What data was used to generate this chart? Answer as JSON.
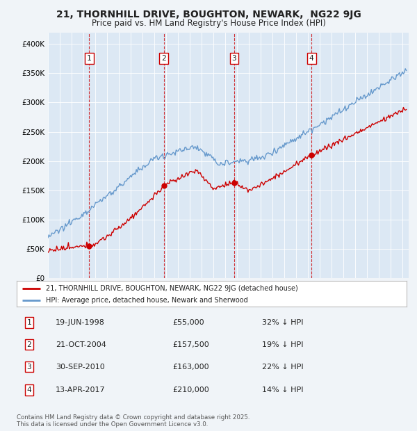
{
  "title": "21, THORNHILL DRIVE, BOUGHTON, NEWARK,  NG22 9JG",
  "subtitle": "Price paid vs. HM Land Registry's House Price Index (HPI)",
  "background_color": "#f0f4f8",
  "plot_bg_color": "#dce8f4",
  "sale_color": "#cc0000",
  "hpi_color": "#6699cc",
  "ylim": [
    0,
    420000
  ],
  "yticks": [
    0,
    50000,
    100000,
    150000,
    200000,
    250000,
    300000,
    350000,
    400000
  ],
  "ytick_labels": [
    "£0",
    "£50K",
    "£100K",
    "£150K",
    "£200K",
    "£250K",
    "£300K",
    "£350K",
    "£400K"
  ],
  "sales": [
    {
      "date_num": 1998.47,
      "price": 55000,
      "label": "1"
    },
    {
      "date_num": 2004.81,
      "price": 157500,
      "label": "2"
    },
    {
      "date_num": 2010.75,
      "price": 163000,
      "label": "3"
    },
    {
      "date_num": 2017.28,
      "price": 210000,
      "label": "4"
    }
  ],
  "legend_sale_label": "21, THORNHILL DRIVE, BOUGHTON, NEWARK, NG22 9JG (detached house)",
  "legend_hpi_label": "HPI: Average price, detached house, Newark and Sherwood",
  "table_rows": [
    {
      "num": "1",
      "date": "19-JUN-1998",
      "price": "£55,000",
      "hpi": "32% ↓ HPI"
    },
    {
      "num": "2",
      "date": "21-OCT-2004",
      "price": "£157,500",
      "hpi": "19% ↓ HPI"
    },
    {
      "num": "3",
      "date": "30-SEP-2010",
      "price": "£163,000",
      "hpi": "22% ↓ HPI"
    },
    {
      "num": "4",
      "date": "13-APR-2017",
      "price": "£210,000",
      "hpi": "14% ↓ HPI"
    }
  ],
  "footer": "Contains HM Land Registry data © Crown copyright and database right 2025.\nThis data is licensed under the Open Government Licence v3.0.",
  "hpi_vline_color": "#aabbcc",
  "sale_vline_color": "#cc0000"
}
